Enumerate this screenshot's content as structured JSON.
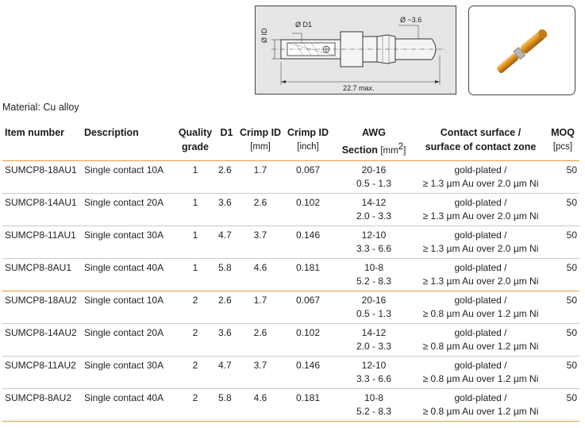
{
  "drawing": {
    "label_d1": "Ø D1",
    "label_id": "Ø ID",
    "label_tip": "Ø ~3.6",
    "label_length": "22.7 max."
  },
  "material": "Material: Cu alloy",
  "table": {
    "headers": {
      "item_number": "Item number",
      "description": "Description",
      "quality_line1": "Quality",
      "quality_line2": "grade",
      "d1": "D1",
      "crimp_mm_line1": "Crimp ID",
      "crimp_mm_unit": "[mm]",
      "crimp_inch_line1": "Crimp ID",
      "crimp_inch_unit": "[inch]",
      "awg_line1": "AWG",
      "awg_line2": "Section",
      "awg_unit": "[mm",
      "awg_unit_sup": "2",
      "awg_unit_close": "]",
      "contact_line1": "Contact surface /",
      "contact_line2": "surface of contact  zone",
      "moq_line1": "MOQ",
      "moq_unit": "[pcs]"
    },
    "rows": [
      {
        "item": "SUMCP8-18AU1",
        "desc": "Single contact 10A",
        "grade": "1",
        "d1": "2.6",
        "crimp_mm": "1.7",
        "crimp_inch": "0.067",
        "awg": "20-16",
        "section": "0.5 - 1.3",
        "surface1": "gold-plated /",
        "surface2": "≥ 1.3 µm Au over  2.0 µm Ni",
        "moq": "50"
      },
      {
        "item": "SUMCP8-14AU1",
        "desc": "Single contact 20A",
        "grade": "1",
        "d1": "3.6",
        "crimp_mm": "2.6",
        "crimp_inch": "0.102",
        "awg": "14-12",
        "section": "2.0 - 3.3",
        "surface1": "gold-plated /",
        "surface2": "≥ 1.3 µm Au over  2.0 µm Ni",
        "moq": "50"
      },
      {
        "item": "SUMCP8-11AU1",
        "desc": "Single contact 30A",
        "grade": "1",
        "d1": "4.7",
        "crimp_mm": "3.7",
        "crimp_inch": "0.146",
        "awg": "12-10",
        "section": "3.3 - 6.6",
        "surface1": "gold-plated /",
        "surface2": "≥ 1.3 µm Au over  2.0 µm Ni",
        "moq": "50"
      },
      {
        "item": "SUMCP8-8AU1",
        "desc": "Single contact 40A",
        "grade": "1",
        "d1": "5.8",
        "crimp_mm": "4.6",
        "crimp_inch": "0.181",
        "awg": "10-8",
        "section": "5.2 - 8.3",
        "surface1": "gold-plated /",
        "surface2": "≥ 1.3 µm Au over  2.0 µm Ni",
        "moq": "50"
      },
      {
        "item": "SUMCP8-18AU2",
        "desc": "Single contact 10A",
        "grade": "2",
        "d1": "2.6",
        "crimp_mm": "1.7",
        "crimp_inch": "0.067",
        "awg": "20-16",
        "section": "0.5 - 1.3",
        "surface1": "gold-plated /",
        "surface2": "≥ 0.8 µm Au over  1.2 µm Ni",
        "moq": "50"
      },
      {
        "item": "SUMCP8-14AU2",
        "desc": "Single contact 20A",
        "grade": "2",
        "d1": "3.6",
        "crimp_mm": "2.6",
        "crimp_inch": "0.102",
        "awg": "14-12",
        "section": "2.0 - 3.3",
        "surface1": "gold-plated /",
        "surface2": "≥ 0.8 µm Au over  1.2 µm Ni",
        "moq": "50"
      },
      {
        "item": "SUMCP8-11AU2",
        "desc": "Single contact 30A",
        "grade": "2",
        "d1": "4.7",
        "crimp_mm": "3.7",
        "crimp_inch": "0.146",
        "awg": "12-10",
        "section": "3.3 - 6.6",
        "surface1": "gold-plated /",
        "surface2": "≥ 0.8 µm Au over  1.2 µm Ni",
        "moq": "50"
      },
      {
        "item": "SUMCP8-8AU2",
        "desc": "Single contact 40A",
        "grade": "2",
        "d1": "5.8",
        "crimp_mm": "4.6",
        "crimp_inch": "0.181",
        "awg": "10-8",
        "section": "5.2 - 8.3",
        "surface1": "gold-plated /",
        "surface2": "≥ 0.8 µm Au over  1.2 µm Ni",
        "moq": "50"
      }
    ]
  }
}
